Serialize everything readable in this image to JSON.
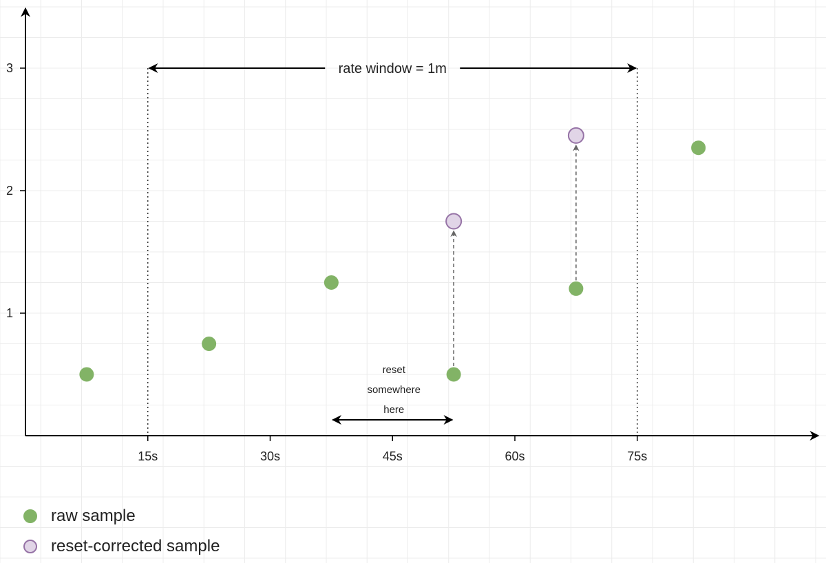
{
  "chart_data": {
    "type": "scatter",
    "title": "",
    "xlabel": "",
    "ylabel": "",
    "xlim": [
      -10,
      102
    ],
    "ylim": [
      0,
      3.3
    ],
    "x_ticks": [
      15,
      30,
      45,
      60,
      75
    ],
    "x_tick_labels": [
      "15s",
      "30s",
      "45s",
      "60s",
      "75s"
    ],
    "y_ticks": [
      1,
      2,
      3
    ],
    "y_tick_labels": [
      "1",
      "2",
      "3"
    ],
    "grid": true,
    "legend_position": "bottom-left",
    "series": [
      {
        "name": "raw sample",
        "color": "#82b366",
        "stroke": "#82b366",
        "points": [
          {
            "x": 7.5,
            "y": 0.5
          },
          {
            "x": 22.5,
            "y": 0.75
          },
          {
            "x": 37.5,
            "y": 1.25
          },
          {
            "x": 52.5,
            "y": 0.5
          },
          {
            "x": 67.5,
            "y": 1.2
          },
          {
            "x": 82.5,
            "y": 2.35
          }
        ]
      },
      {
        "name": "reset-corrected sample",
        "color": "#e1d5e7",
        "stroke": "#9673a6",
        "points": [
          {
            "x": 52.5,
            "y": 1.75
          },
          {
            "x": 67.5,
            "y": 2.45
          }
        ]
      }
    ],
    "reset_arrows": [
      {
        "x": 52.5,
        "from_y": 0.5,
        "to_y": 1.75
      },
      {
        "x": 67.5,
        "from_y": 1.2,
        "to_y": 2.45
      }
    ],
    "window": {
      "start": 15,
      "end": 75,
      "label": "rate window = 1m"
    },
    "reset_region": {
      "from": 37.5,
      "to": 52.5,
      "lines": [
        "reset",
        "somewhere",
        "here"
      ]
    }
  }
}
